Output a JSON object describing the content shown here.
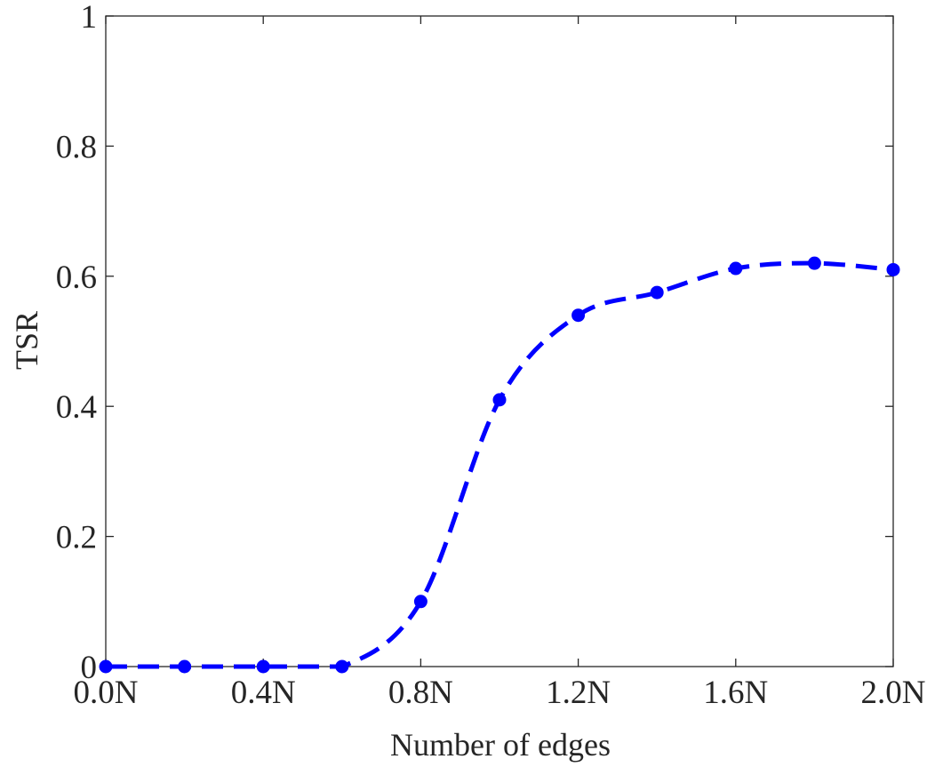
{
  "chart_data": {
    "type": "line",
    "title": "",
    "xlabel": "Number of edges",
    "ylabel": "TSR",
    "x": [
      0.0,
      0.2,
      0.4,
      0.6,
      0.8,
      1.0,
      1.2,
      1.4,
      1.6,
      1.8,
      2.0
    ],
    "xlim": [
      0.0,
      2.0
    ],
    "ylim": [
      0,
      1
    ],
    "x_ticks": [
      0.0,
      0.4,
      0.8,
      1.2,
      1.6,
      2.0
    ],
    "x_tick_labels": [
      "0.0N",
      "0.4N",
      "0.8N",
      "1.2N",
      "1.6N",
      "2.0N"
    ],
    "y_ticks": [
      0,
      0.2,
      0.4,
      0.6,
      0.8,
      1
    ],
    "y_tick_labels": [
      "0",
      "0.2",
      "0.4",
      "0.6",
      "0.8",
      "1"
    ],
    "grid": false,
    "series": [
      {
        "color": "#0000ff",
        "line_style": "dashed",
        "marker": "circle",
        "values": [
          0.0,
          0.0,
          0.0,
          0.0,
          0.1,
          0.41,
          0.54,
          0.575,
          0.612,
          0.62,
          0.61
        ]
      }
    ]
  }
}
